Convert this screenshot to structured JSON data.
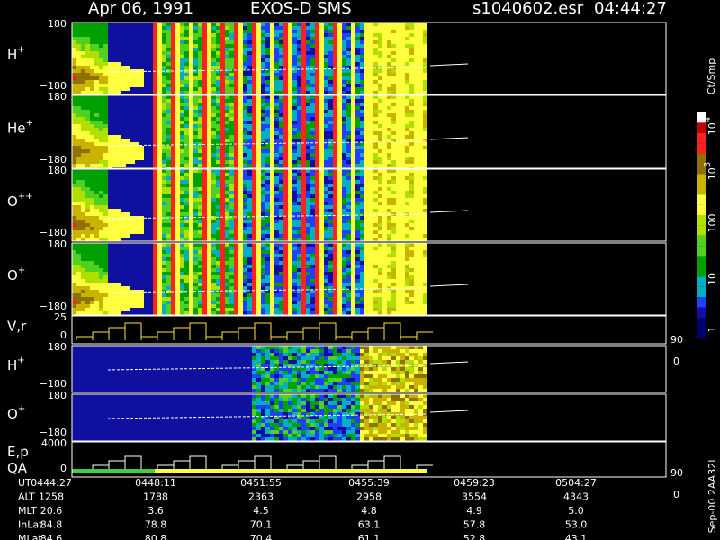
{
  "header": {
    "date": "Apr 06, 1991",
    "instrument": "EXOS-D SMS",
    "file": "s1040602.esr",
    "time": "04:44:27"
  },
  "panels": [
    {
      "label": "H",
      "sup": "+",
      "top": "180",
      "bottom": "−180"
    },
    {
      "label": "He",
      "sup": "+",
      "top": "180",
      "bottom": "−180"
    },
    {
      "label": "O",
      "sup": "++",
      "top": "180",
      "bottom": "−180"
    },
    {
      "label": "O",
      "sup": "+",
      "top": "180",
      "bottom": "−180"
    },
    {
      "label": "V,r",
      "top": "25",
      "bottom": "0",
      "right_top": "90",
      "right_bottom": "0"
    },
    {
      "label": "H",
      "sup": "+",
      "top": "180",
      "bottom": "−180"
    },
    {
      "label": "O",
      "sup": "+",
      "top": "180",
      "bottom": "−180"
    },
    {
      "label": "E,p",
      "label2": "QA",
      "top": "4000",
      "bottom": "0",
      "right_top": "90",
      "right_bottom": "0"
    }
  ],
  "colorbar": {
    "unit": "Ct/Smp",
    "labels": [
      {
        "base": "10",
        "sup": "4"
      },
      {
        "base": "10",
        "sup": "3"
      },
      {
        "base": "100"
      },
      {
        "base": "10"
      },
      {
        "base": "1"
      }
    ]
  },
  "footer_note": "Sep-00  2AA32L",
  "table": {
    "rows": [
      [
        "UT",
        "0444:27",
        "0448:11",
        "0451:55",
        "0455:39",
        "0459:23",
        "0504:27"
      ],
      [
        "ALT",
        "1258",
        "1788",
        "2363",
        "2958",
        "3554",
        "4343"
      ],
      [
        "MLT",
        "20.6",
        "3.6",
        "4.5",
        "4.8",
        "4.9",
        "5.0"
      ],
      [
        "InLat",
        "84.8",
        "78.8",
        "70.1",
        "63.1",
        "57.8",
        "53.0"
      ],
      [
        "MLat",
        "84.6",
        "80.8",
        "70.4",
        "61.1",
        "52.8",
        "43.1"
      ]
    ]
  }
}
